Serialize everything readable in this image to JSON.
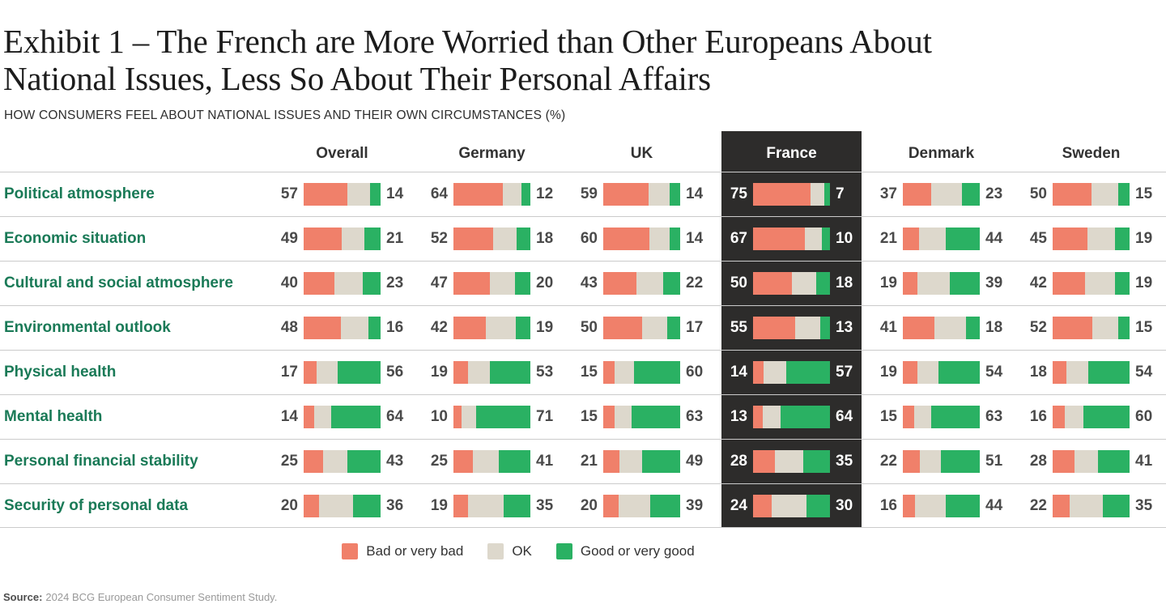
{
  "title": "Exhibit 1 – The French are More Worried than Other Europeans About National Issues, Less So About Their Personal Affairs",
  "subtitle": "HOW CONSUMERS FEEL ABOUT NATIONAL ISSUES AND THEIR OWN CIRCUMSTANCES (%)",
  "source": {
    "label": "Source:",
    "text": "2024 BCG European Consumer Sentiment Study."
  },
  "legend": [
    {
      "name": "bad",
      "label": "Bad or very bad"
    },
    {
      "name": "ok",
      "label": "OK"
    },
    {
      "name": "good",
      "label": "Good or very good"
    }
  ],
  "colors": {
    "bad": "#F0806A",
    "ok": "#DDD8CC",
    "good": "#2AB163",
    "highlight_bg": "#2D2C2B",
    "row_label": "#1A7A57",
    "divider": "#cbcbcb"
  },
  "chart_data": {
    "type": "bar",
    "subtype": "horizontal-stacked-matrix",
    "unit": "%",
    "stack_total": 100,
    "note": "ok segment = 100 - bad - good; bar width is constant (100%)",
    "series_legend": [
      "Bad or very bad",
      "OK",
      "Good or very good"
    ],
    "columns": [
      "Overall",
      "Germany",
      "UK",
      "France",
      "Denmark",
      "Sweden"
    ],
    "highlighted_column": "France",
    "rows": [
      {
        "label": "Political atmosphere",
        "values": [
          {
            "bad": 57,
            "good": 14
          },
          {
            "bad": 64,
            "good": 12
          },
          {
            "bad": 59,
            "good": 14
          },
          {
            "bad": 75,
            "good": 7
          },
          {
            "bad": 37,
            "good": 23
          },
          {
            "bad": 50,
            "good": 15
          }
        ]
      },
      {
        "label": "Economic situation",
        "values": [
          {
            "bad": 49,
            "good": 21
          },
          {
            "bad": 52,
            "good": 18
          },
          {
            "bad": 60,
            "good": 14
          },
          {
            "bad": 67,
            "good": 10
          },
          {
            "bad": 21,
            "good": 44
          },
          {
            "bad": 45,
            "good": 19
          }
        ]
      },
      {
        "label": "Cultural and social atmosphere",
        "values": [
          {
            "bad": 40,
            "good": 23
          },
          {
            "bad": 47,
            "good": 20
          },
          {
            "bad": 43,
            "good": 22
          },
          {
            "bad": 50,
            "good": 18
          },
          {
            "bad": 19,
            "good": 39
          },
          {
            "bad": 42,
            "good": 19
          }
        ]
      },
      {
        "label": "Environmental outlook",
        "values": [
          {
            "bad": 48,
            "good": 16
          },
          {
            "bad": 42,
            "good": 19
          },
          {
            "bad": 50,
            "good": 17
          },
          {
            "bad": 55,
            "good": 13
          },
          {
            "bad": 41,
            "good": 18
          },
          {
            "bad": 52,
            "good": 15
          }
        ]
      },
      {
        "label": "Physical health",
        "values": [
          {
            "bad": 17,
            "good": 56
          },
          {
            "bad": 19,
            "good": 53
          },
          {
            "bad": 15,
            "good": 60
          },
          {
            "bad": 14,
            "good": 57
          },
          {
            "bad": 19,
            "good": 54
          },
          {
            "bad": 18,
            "good": 54
          }
        ]
      },
      {
        "label": "Mental health",
        "values": [
          {
            "bad": 14,
            "good": 64
          },
          {
            "bad": 10,
            "good": 71
          },
          {
            "bad": 15,
            "good": 63
          },
          {
            "bad": 13,
            "good": 64
          },
          {
            "bad": 15,
            "good": 63
          },
          {
            "bad": 16,
            "good": 60
          }
        ]
      },
      {
        "label": "Personal financial stability",
        "values": [
          {
            "bad": 25,
            "good": 43
          },
          {
            "bad": 25,
            "good": 41
          },
          {
            "bad": 21,
            "good": 49
          },
          {
            "bad": 28,
            "good": 35
          },
          {
            "bad": 22,
            "good": 51
          },
          {
            "bad": 28,
            "good": 41
          }
        ]
      },
      {
        "label": "Security of personal data",
        "values": [
          {
            "bad": 20,
            "good": 36
          },
          {
            "bad": 19,
            "good": 35
          },
          {
            "bad": 20,
            "good": 39
          },
          {
            "bad": 24,
            "good": 30
          },
          {
            "bad": 16,
            "good": 44
          },
          {
            "bad": 22,
            "good": 35
          }
        ]
      }
    ]
  }
}
